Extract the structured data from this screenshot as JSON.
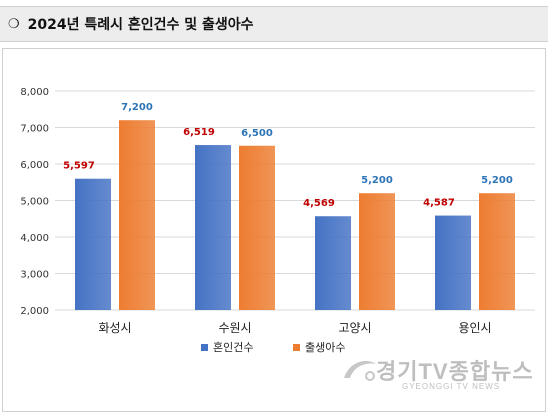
{
  "header": {
    "bullet": "❍",
    "title": "2024년 특례시 혼인건수 및 출생아수"
  },
  "watermark": {
    "main": "경기TV종합뉴스",
    "sub": "GYEONGGI TV NEWS"
  },
  "chart_data": {
    "type": "bar",
    "categories": [
      "화성시",
      "수원시",
      "고양시",
      "용인시"
    ],
    "series": [
      {
        "name": "혼인건수",
        "values": [
          5597,
          6519,
          4569,
          4587
        ],
        "color": "#4472c4",
        "label_color": "#c00000"
      },
      {
        "name": "출생아수",
        "values": [
          7200,
          6500,
          5200,
          5200
        ],
        "color": "#ed7d31",
        "label_color": "#2e75b6"
      }
    ],
    "value_labels": [
      [
        "5,597",
        "6,519",
        "4,569",
        "4,587"
      ],
      [
        "7,200",
        "6,500",
        "5,200",
        "5,200"
      ]
    ],
    "yticks": [
      "2,000",
      "3,000",
      "4,000",
      "5,000",
      "6,000",
      "7,000",
      "8,000"
    ],
    "ylim": [
      2000,
      8000
    ],
    "grid": true,
    "legend": "bottom-center"
  }
}
